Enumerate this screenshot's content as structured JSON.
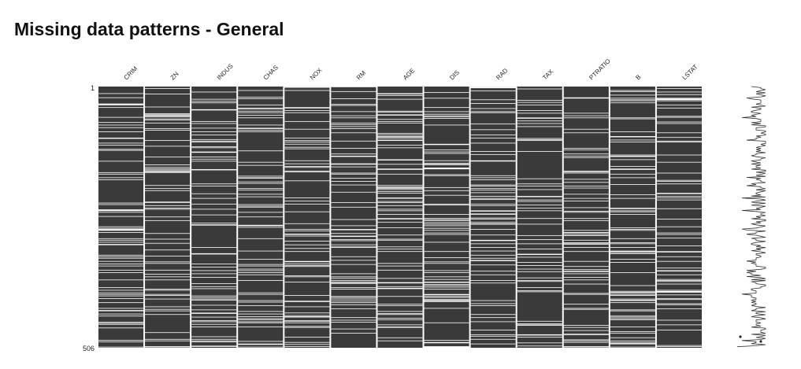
{
  "title": "Missing data patterns - General",
  "chart_data": {
    "type": "heatmap",
    "title": "Missing data patterns - General",
    "columns": [
      "CRIM",
      "ZN",
      "INDUS",
      "CHAS",
      "NOX",
      "RM",
      "AGE",
      "DIS",
      "RAD",
      "TAX",
      "PTRATIO",
      "B",
      "LSTAT"
    ],
    "row_range": [
      1,
      506
    ],
    "row_tick_labels": [
      "1",
      "506"
    ],
    "present_color": "#3a3a3a",
    "missing_color": "#ffffff",
    "sparkline": {
      "shown": true
    }
  }
}
